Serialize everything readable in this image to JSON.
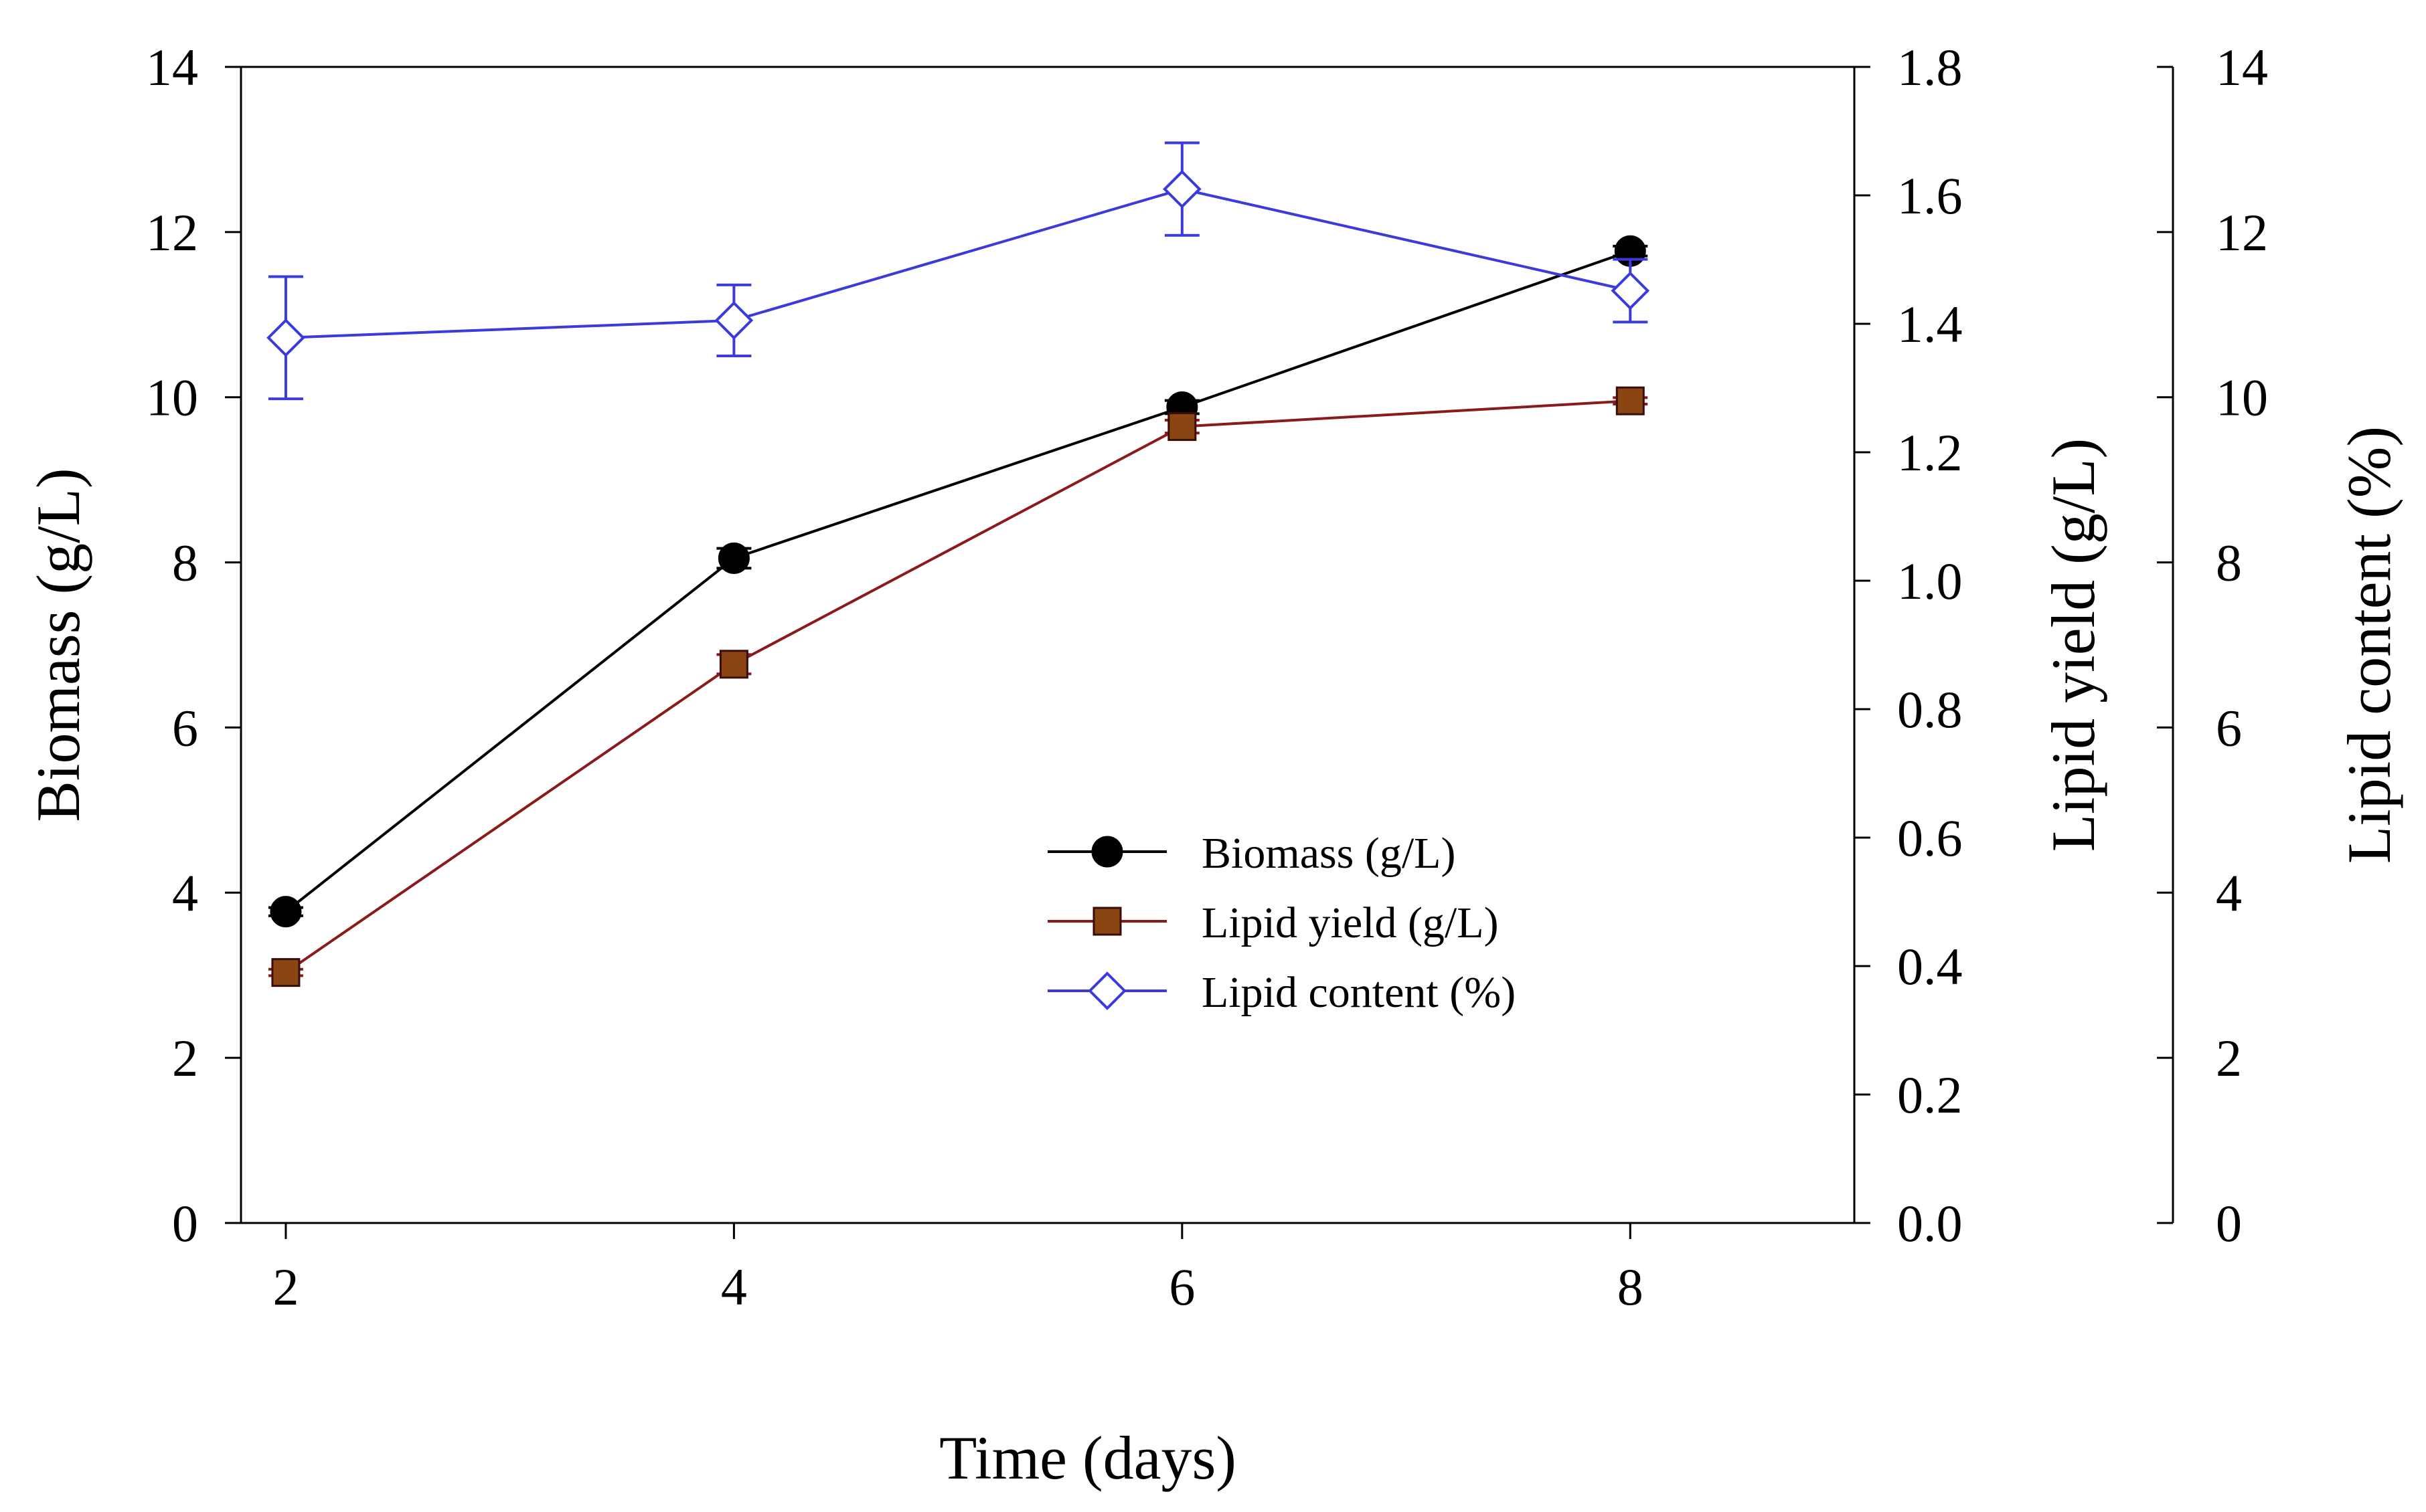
{
  "chart_data": {
    "type": "line",
    "title": "",
    "xlabel": "Time (days)",
    "x": [
      2,
      4,
      6,
      8
    ],
    "xlim": [
      1.8,
      9.0
    ],
    "xticks": [
      "2",
      "4",
      "6",
      "8"
    ],
    "axes": [
      {
        "id": "left",
        "label": "Biomass (g/L)",
        "ylim": [
          0,
          14
        ],
        "ticks": [
          "0",
          "2",
          "4",
          "6",
          "8",
          "10",
          "12",
          "14"
        ]
      },
      {
        "id": "right1",
        "label": "Lipid yield (g/L)",
        "ylim": [
          0,
          1.8
        ],
        "ticks": [
          "0.0",
          "0.2",
          "0.4",
          "0.6",
          "0.8",
          "1.0",
          "1.2",
          "1.4",
          "1.6",
          "1.8"
        ]
      },
      {
        "id": "right2",
        "label": "Lipid content (%)",
        "ylim": [
          0,
          14
        ],
        "ticks": [
          "0",
          "2",
          "4",
          "6",
          "8",
          "10",
          "12",
          "14"
        ]
      }
    ],
    "series": [
      {
        "name": "Biomass (g/L)",
        "axis": "left",
        "color": "#000000",
        "marker": "circle",
        "values": [
          3.77,
          8.05,
          9.88,
          11.77
        ],
        "errors": [
          0.05,
          0.12,
          0.08,
          0.06
        ]
      },
      {
        "name": "Lipid yield (g/L)",
        "axis": "right1",
        "color": "#8b1a1a",
        "marker_fill": "#8b4513",
        "marker": "square",
        "values": [
          0.39,
          0.87,
          1.24,
          1.28
        ],
        "errors": [
          0.005,
          0.015,
          0.01,
          0.005
        ]
      },
      {
        "name": "Lipid content (%)",
        "axis": "right2",
        "color": "#3b3bdb",
        "marker": "diamond-open",
        "values": [
          10.72,
          10.93,
          12.52,
          11.29
        ],
        "errors": [
          0.74,
          0.43,
          0.56,
          0.38
        ]
      }
    ],
    "legend": {
      "position": "center-right"
    },
    "grid": false
  }
}
